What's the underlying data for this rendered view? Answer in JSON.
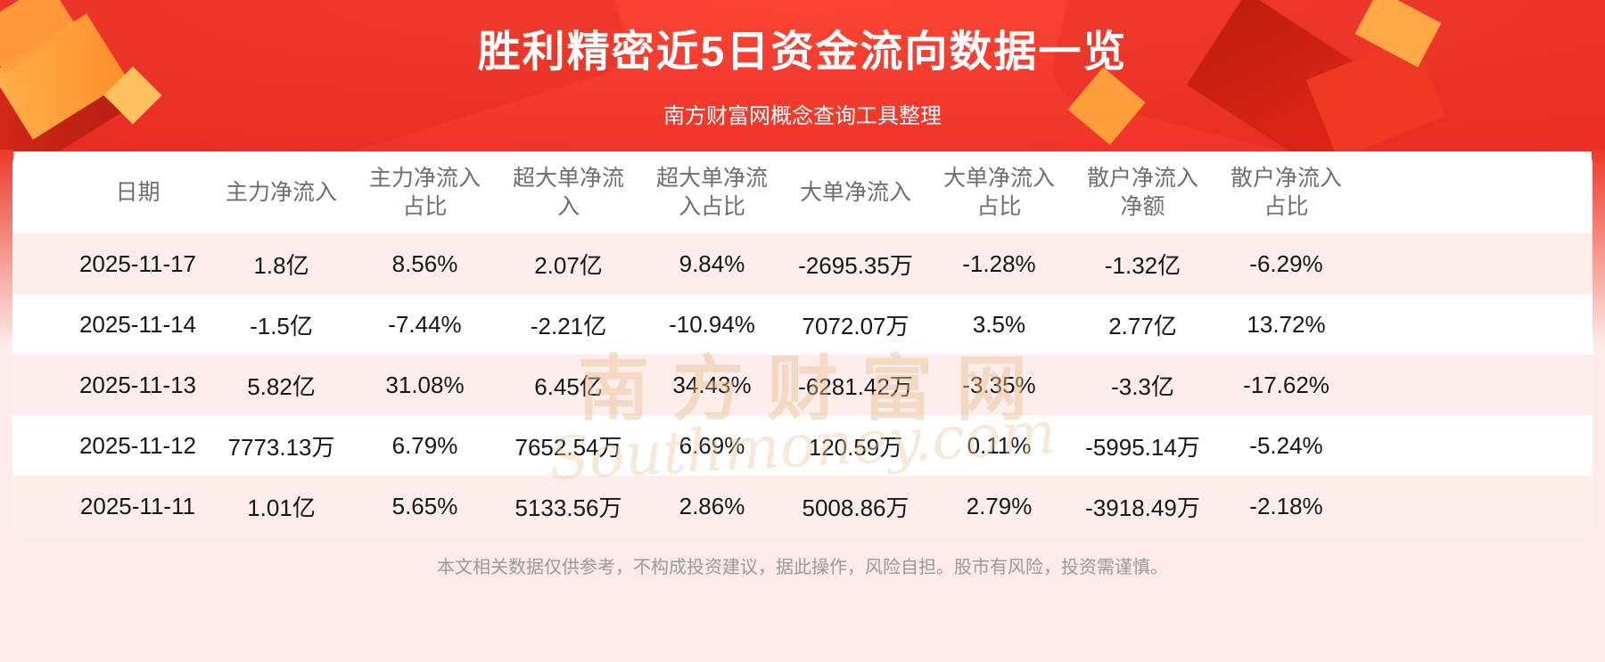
{
  "banner": {
    "title": "胜利精密近5日资金流向数据一览",
    "subtitle": "南方财富网概念查询工具整理"
  },
  "chart_data": {
    "type": "table",
    "title": "胜利精密近5日资金流向数据一览",
    "columns": [
      "日期",
      "主力净流入",
      "主力净流入\n占比",
      "超大单净流\n入",
      "超大单净流\n入占比",
      "大单净流入",
      "大单净流入\n占比",
      "散户净流入\n净额",
      "散户净流入\n占比"
    ],
    "rows": [
      [
        "2025-11-17",
        "1.8亿",
        "8.56%",
        "2.07亿",
        "9.84%",
        "-2695.35万",
        "-1.28%",
        "-1.32亿",
        "-6.29%"
      ],
      [
        "2025-11-14",
        "-1.5亿",
        "-7.44%",
        "-2.21亿",
        "-10.94%",
        "7072.07万",
        "3.5%",
        "2.77亿",
        "13.72%"
      ],
      [
        "2025-11-13",
        "5.82亿",
        "31.08%",
        "6.45亿",
        "34.43%",
        "-6281.42万",
        "-3.35%",
        "-3.3亿",
        "-17.62%"
      ],
      [
        "2025-11-12",
        "7773.13万",
        "6.79%",
        "7652.54万",
        "6.69%",
        "120.59万",
        "0.11%",
        "-5995.14万",
        "-5.24%"
      ],
      [
        "2025-11-11",
        "1.01亿",
        "5.65%",
        "5133.56万",
        "2.86%",
        "5008.86万",
        "2.79%",
        "-3918.49万",
        "-2.18%"
      ]
    ]
  },
  "watermark": {
    "line1": "南方财富网",
    "line2": "Southmoney.com"
  },
  "footer": {
    "disclaimer": "本文相关数据仅供参考，不构成投资建议，据此操作，风险自担。股市有风险，投资需谨慎。"
  },
  "colors": {
    "banner_red": "#f2352a",
    "accent_gold": "#ffa03c",
    "row_alt_pink": "#fdeeec",
    "page_pink": "#fcebe8",
    "header_text": "#6e6e6e",
    "body_text": "#161616",
    "footer_text": "#9a9a9a",
    "watermark_gold": "#e7bf94"
  }
}
